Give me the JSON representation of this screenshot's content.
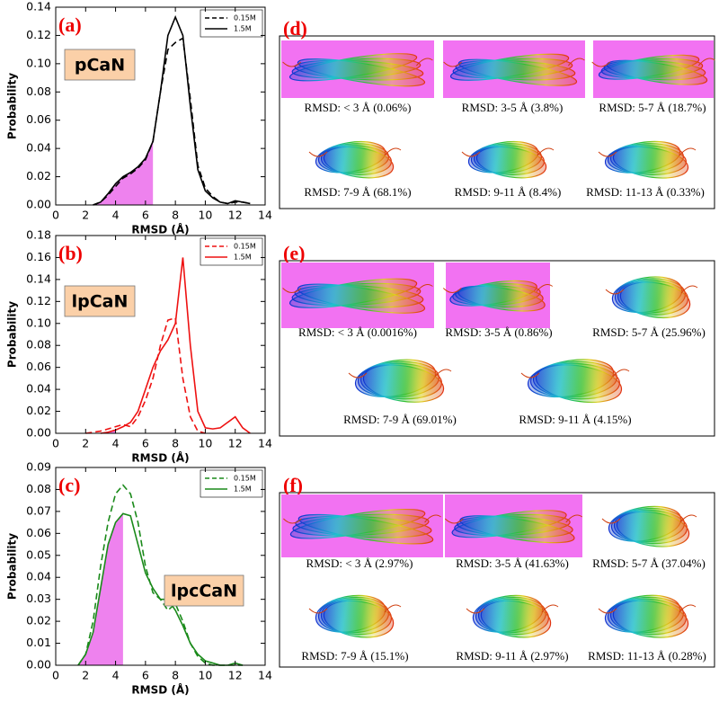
{
  "chart_data": [
    {
      "type": "line",
      "panel_label": "(a)",
      "name": "pCaN",
      "xlabel": "RMSD (Å)",
      "ylabel": "Probability",
      "x": [
        0,
        0.5,
        1,
        1.5,
        2,
        2.5,
        3,
        3.5,
        4,
        4.5,
        5,
        5.5,
        6,
        6.5,
        7,
        7.5,
        8,
        8.5,
        9,
        9.5,
        10,
        10.5,
        11,
        11.5,
        12,
        12.5,
        13,
        13.5,
        14
      ],
      "series": [
        {
          "name": "0.15M",
          "color": "#000000",
          "dashed": true,
          "values": [
            null,
            null,
            null,
            null,
            null,
            0,
            0.002,
            0.007,
            0.013,
            0.019,
            0.022,
            0.026,
            0.032,
            0.045,
            0.08,
            0.11,
            0.115,
            0.118,
            0.075,
            0.028,
            0.012,
            0.006,
            0.002,
            0.001,
            0.002,
            0.002,
            0.001,
            null,
            null
          ]
        },
        {
          "name": "1.5M",
          "color": "#000000",
          "dashed": false,
          "values": [
            null,
            null,
            null,
            null,
            null,
            0,
            0.002,
            0.008,
            0.015,
            0.02,
            0.023,
            0.027,
            0.033,
            0.045,
            0.08,
            0.12,
            0.133,
            0.12,
            0.07,
            0.025,
            0.01,
            0.005,
            0.002,
            0.001,
            0.003,
            0.002,
            0.001,
            null,
            null
          ]
        }
      ],
      "shade_x": [
        0,
        6.5
      ],
      "shade_color": "#ee82ee",
      "xlim": [
        0,
        14
      ],
      "xticks": [
        0,
        2,
        4,
        6,
        8,
        10,
        12,
        14
      ],
      "ylim": [
        0,
        0.14
      ],
      "yticks": [
        {
          "value": 0,
          "label": "0.00"
        },
        0.02,
        0.04,
        0.06,
        0.08,
        {
          "value": 0.1,
          "label": "0.10"
        },
        0.12,
        0.14
      ],
      "legend": "upper right"
    },
    {
      "type": "line",
      "panel_label": "(b)",
      "name": "lpCaN",
      "xlabel": "RMSD (Å)",
      "ylabel": "Probability",
      "x": [
        0,
        0.5,
        1,
        1.5,
        2,
        2.5,
        3,
        3.5,
        4,
        4.5,
        5,
        5.5,
        6,
        6.5,
        7,
        7.5,
        8,
        8.5,
        9,
        9.5,
        10,
        10.5,
        11,
        11.5,
        12,
        12.5,
        13,
        13.5,
        14
      ],
      "series": [
        {
          "name": "0.15M",
          "color": "#ee1111",
          "dashed": true,
          "values": [
            null,
            null,
            null,
            null,
            0,
            0.001,
            0.002,
            0.004,
            0.006,
            0.008,
            0.006,
            0.015,
            0.03,
            0.05,
            0.08,
            0.103,
            0.105,
            0.05,
            0.015,
            0.002,
            0,
            null,
            null,
            null,
            null,
            null,
            null,
            null,
            null
          ]
        },
        {
          "name": "1.5M",
          "color": "#ee1111",
          "dashed": false,
          "values": [
            null,
            null,
            null,
            null,
            null,
            null,
            0,
            0.001,
            0.003,
            0.006,
            0.01,
            0.02,
            0.04,
            0.06,
            0.075,
            0.085,
            0.1,
            0.16,
            0.08,
            0.02,
            0.005,
            0.004,
            0.005,
            0.01,
            0.015,
            0.005,
            0,
            null,
            null
          ]
        }
      ],
      "shade_x": [
        0,
        4
      ],
      "shade_color": "#ee82ee",
      "xlim": [
        0,
        14
      ],
      "xticks": [
        0,
        2,
        4,
        6,
        8,
        10,
        12,
        14
      ],
      "ylim": [
        0,
        0.18
      ],
      "yticks": [
        {
          "value": 0,
          "label": "0.00"
        },
        0.02,
        0.04,
        0.06,
        0.08,
        {
          "value": 0.1,
          "label": "0.10"
        },
        0.12,
        0.14,
        0.16,
        0.18
      ],
      "legend": "upper right"
    },
    {
      "type": "line",
      "panel_label": "(c)",
      "name": "lpcCaN",
      "xlabel": "RMSD (Å)",
      "ylabel": "Probability",
      "x": [
        0,
        0.5,
        1,
        1.5,
        2,
        2.5,
        3,
        3.5,
        4,
        4.5,
        5,
        5.5,
        6,
        6.5,
        7,
        7.5,
        8,
        8.5,
        9,
        9.5,
        10,
        10.5,
        11,
        11.5,
        12,
        12.5,
        13,
        13.5,
        14
      ],
      "series": [
        {
          "name": "0.15M",
          "color": "#1a8a1a",
          "dashed": true,
          "values": [
            null,
            null,
            null,
            0,
            0.005,
            0.02,
            0.045,
            0.065,
            0.078,
            0.082,
            0.078,
            0.065,
            0.045,
            0.033,
            0.03,
            0.025,
            0.028,
            0.02,
            0.01,
            0.004,
            0.001,
            0,
            0,
            0,
            0,
            0,
            null,
            null,
            null
          ]
        },
        {
          "name": "1.5M",
          "color": "#1a8a1a",
          "dashed": false,
          "values": [
            null,
            null,
            null,
            0,
            0.005,
            0.015,
            0.035,
            0.055,
            0.065,
            0.069,
            0.068,
            0.055,
            0.042,
            0.035,
            0.03,
            0.03,
            0.025,
            0.018,
            0.01,
            0.005,
            0.002,
            0.001,
            0,
            0,
            0.001,
            0,
            null,
            null,
            null
          ]
        }
      ],
      "shade_x": [
        0,
        4.8
      ],
      "shade_color": "#ee82ee",
      "xlim": [
        0,
        14
      ],
      "xticks": [
        0,
        2,
        4,
        6,
        8,
        10,
        12,
        14
      ],
      "ylim": [
        0,
        0.09
      ],
      "yticks": [
        {
          "value": 0,
          "label": "0.00"
        },
        0.01,
        0.02,
        0.03,
        0.04,
        0.05,
        0.06,
        0.07,
        0.08,
        0.09
      ],
      "legend": "upper right"
    }
  ],
  "panels": [
    {
      "label": "(d)",
      "items": [
        {
          "caption": "RMSD: < 3 Å (0.06%)",
          "highlighted": true
        },
        {
          "caption": "RMSD: 3-5 Å (3.8%)",
          "highlighted": true
        },
        {
          "caption": "RMSD: 5-7 Å (18.7%)",
          "highlighted": true
        },
        {
          "caption": "RMSD: 7-9 Å (68.1%)",
          "highlighted": false
        },
        {
          "caption": "RMSD: 9-11 Å (8.4%)",
          "highlighted": false
        },
        {
          "caption": "RMSD: 11-13 Å (0.33%)",
          "highlighted": false
        }
      ]
    },
    {
      "label": "(e)",
      "items": [
        {
          "caption": "RMSD: < 3 Å (0.0016%)",
          "highlighted": true
        },
        {
          "caption": "RMSD: 3-5 Å (0.86%)",
          "highlighted": true
        },
        {
          "caption": "RMSD: 5-7 Å (25.96%)",
          "highlighted": false
        },
        {
          "caption": "RMSD: 7-9 Å (69.01%)",
          "highlighted": false
        },
        {
          "caption": "RMSD: 9-11 Å (4.15%)",
          "highlighted": false
        }
      ]
    },
    {
      "label": "(f)",
      "items": [
        {
          "caption": "RMSD: < 3 Å (2.97%)",
          "highlighted": true
        },
        {
          "caption": "RMSD: 3-5 Å (41.63%)",
          "highlighted": true
        },
        {
          "caption": "RMSD: 5-7 Å (37.04%)",
          "highlighted": false
        },
        {
          "caption": "RMSD: 7-9 Å (15.1%)",
          "highlighted": false
        },
        {
          "caption": "RMSD: 9-11 Å (2.97%)",
          "highlighted": false
        },
        {
          "caption": "RMSD: 11-13 Å (0.28%)",
          "highlighted": false
        }
      ]
    }
  ]
}
